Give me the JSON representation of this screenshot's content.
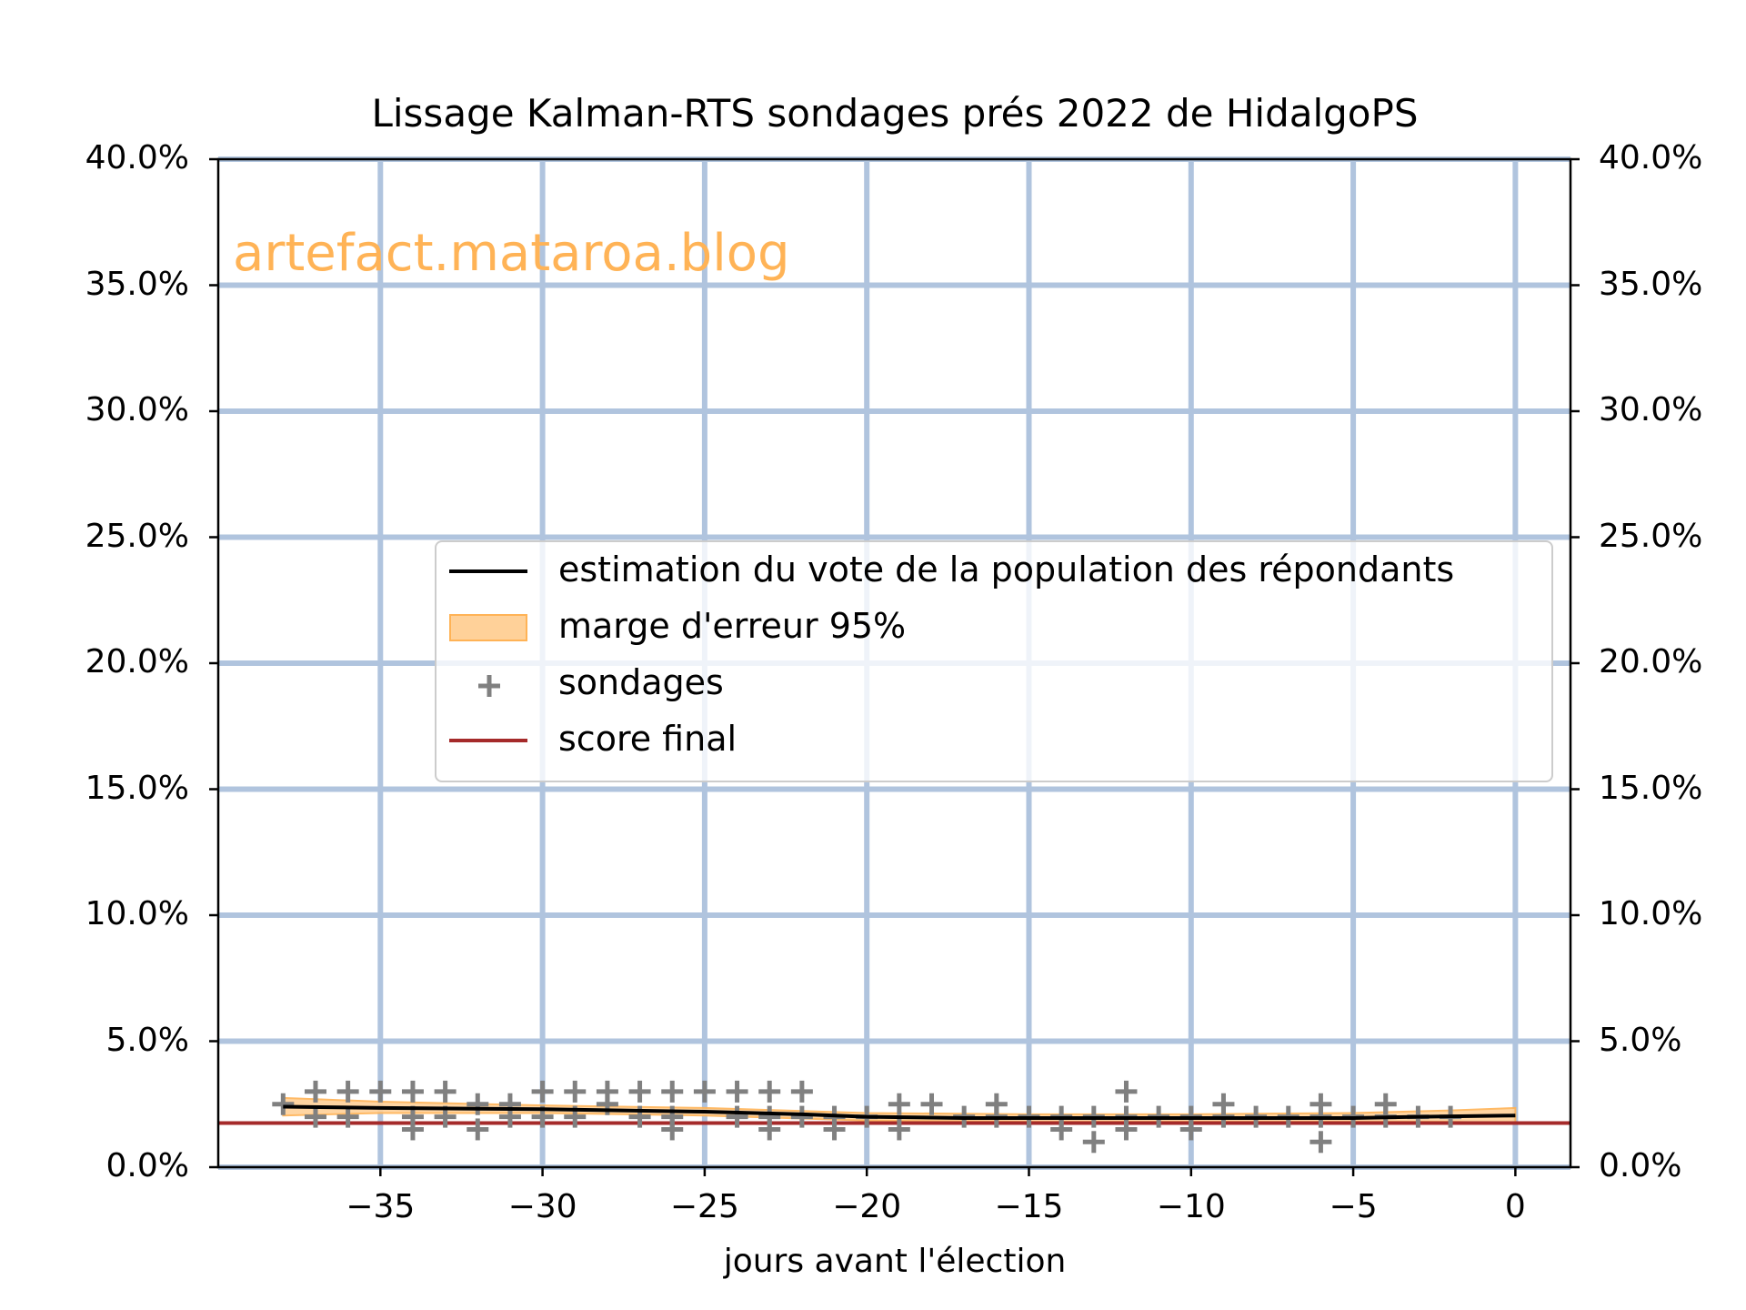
{
  "chart_data": {
    "type": "line",
    "title": "Lissage Kalman-RTS sondages prés 2022 de HidalgoPS",
    "xlabel": "jours avant l'élection",
    "ylabel": "",
    "watermark": "artefact.mataroa.blog",
    "xlim": [
      -40,
      1.7
    ],
    "ylim": [
      0,
      40
    ],
    "x_ticks": [
      -35,
      -30,
      -25,
      -20,
      -15,
      -10,
      -5,
      0
    ],
    "x_tick_labels": [
      "−35",
      "−30",
      "−25",
      "−20",
      "−15",
      "−10",
      "−5",
      "0"
    ],
    "y_ticks": [
      0,
      5,
      10,
      15,
      20,
      25,
      30,
      35,
      40
    ],
    "y_tick_labels": [
      "0.0%",
      "5.0%",
      "10.0%",
      "15.0%",
      "20.0%",
      "25.0%",
      "30.0%",
      "35.0%",
      "40.0%"
    ],
    "y_axis_mirrored_right": true,
    "grid": true,
    "legend_position": "center right",
    "legend": [
      {
        "label": "estimation du vote de la population des répondants",
        "type": "line",
        "color": "#000000"
      },
      {
        "label": "marge d'erreur 95%",
        "type": "band",
        "color": "#ffd199"
      },
      {
        "label": "sondages",
        "type": "marker",
        "marker": "+",
        "color": "#808080"
      },
      {
        "label": "score final",
        "type": "line",
        "color": "#a52a2a"
      }
    ],
    "series": [
      {
        "name": "estimation du vote de la population des répondants",
        "x": [
          -38,
          -35,
          -30,
          -25,
          -22,
          -20,
          -17,
          -15,
          -12,
          -10,
          -7,
          -5,
          -3,
          0
        ],
        "values": [
          2.4,
          2.35,
          2.3,
          2.2,
          2.1,
          2.0,
          1.95,
          1.95,
          1.95,
          1.95,
          1.95,
          1.95,
          2.0,
          2.05
        ]
      },
      {
        "name": "marge d'erreur 95%",
        "x": [
          -38,
          -35,
          -30,
          -25,
          -20,
          -15,
          -10,
          -5,
          -2,
          0
        ],
        "lower": [
          2.05,
          2.15,
          2.15,
          2.05,
          1.85,
          1.8,
          1.8,
          1.8,
          1.8,
          1.75
        ],
        "upper": [
          2.75,
          2.6,
          2.45,
          2.35,
          2.15,
          2.1,
          2.1,
          2.15,
          2.25,
          2.35
        ]
      },
      {
        "name": "sondages",
        "type": "scatter",
        "points": [
          [
            -38,
            2.5
          ],
          [
            -37,
            3.0
          ],
          [
            -37,
            2.0
          ],
          [
            -36,
            3.0
          ],
          [
            -36,
            2.0
          ],
          [
            -35,
            3.0
          ],
          [
            -34,
            3.0
          ],
          [
            -34,
            2.0
          ],
          [
            -34,
            1.5
          ],
          [
            -33,
            3.0
          ],
          [
            -33,
            2.0
          ],
          [
            -32,
            2.5
          ],
          [
            -32,
            1.5
          ],
          [
            -31,
            2.5
          ],
          [
            -31,
            2.0
          ],
          [
            -30,
            3.0
          ],
          [
            -30,
            2.0
          ],
          [
            -29,
            3.0
          ],
          [
            -29,
            2.0
          ],
          [
            -28,
            3.0
          ],
          [
            -28,
            2.5
          ],
          [
            -27,
            3.0
          ],
          [
            -27,
            2.0
          ],
          [
            -26,
            3.0
          ],
          [
            -26,
            2.0
          ],
          [
            -26,
            1.5
          ],
          [
            -25,
            3.0
          ],
          [
            -24,
            3.0
          ],
          [
            -24,
            2.0
          ],
          [
            -23,
            3.0
          ],
          [
            -23,
            2.0
          ],
          [
            -23,
            1.5
          ],
          [
            -22,
            3.0
          ],
          [
            -22,
            2.0
          ],
          [
            -21,
            2.0
          ],
          [
            -21,
            1.5
          ],
          [
            -20,
            2.0
          ],
          [
            -19,
            2.5
          ],
          [
            -19,
            1.5
          ],
          [
            -18,
            2.5
          ],
          [
            -17,
            2.0
          ],
          [
            -16,
            2.5
          ],
          [
            -16,
            2.0
          ],
          [
            -15,
            2.0
          ],
          [
            -14,
            2.0
          ],
          [
            -14,
            1.5
          ],
          [
            -13,
            2.0
          ],
          [
            -13,
            1.0
          ],
          [
            -12,
            3.0
          ],
          [
            -12,
            2.0
          ],
          [
            -12,
            1.5
          ],
          [
            -11,
            2.0
          ],
          [
            -10,
            2.0
          ],
          [
            -10,
            1.5
          ],
          [
            -9,
            2.5
          ],
          [
            -9,
            2.0
          ],
          [
            -8,
            2.0
          ],
          [
            -7,
            2.0
          ],
          [
            -6,
            2.5
          ],
          [
            -6,
            2.0
          ],
          [
            -6,
            1.0
          ],
          [
            -5,
            2.0
          ],
          [
            -4,
            2.5
          ],
          [
            -4,
            2.0
          ],
          [
            -3,
            2.0
          ],
          [
            -2,
            2.0
          ]
        ]
      },
      {
        "name": "score final",
        "type": "hline",
        "value": 1.75
      }
    ]
  },
  "colors": {
    "grid": "#b0c4de",
    "estimate": "#000000",
    "band": "#ffd199",
    "band_edge": "#ffb356",
    "poll": "#808080",
    "final": "#a52a2a",
    "watermark": "#ffb356"
  }
}
